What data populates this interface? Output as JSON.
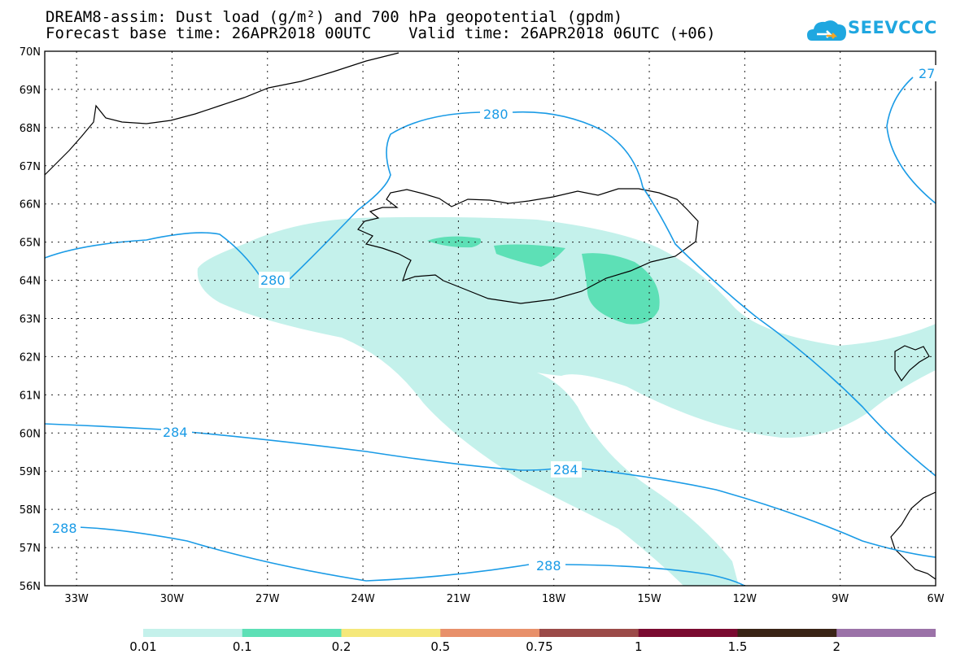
{
  "header": {
    "title_line1": "DREAM8-assim: Dust load (g/m²) and 700 hPa geopotential (gpdm)",
    "title_line2": "Forecast base time: 26APR2018 00UTC    Valid time: 26APR2018 06UTC (+06)"
  },
  "logo": {
    "text": "SEEVCCC",
    "icon": "cloud-icon",
    "color": "#1fa7e0"
  },
  "map": {
    "lon_range": [
      -34,
      -6
    ],
    "lat_range": [
      56,
      70
    ],
    "lon_ticks": [
      "33W",
      "30W",
      "27W",
      "24W",
      "21W",
      "18W",
      "15W",
      "12W",
      "9W",
      "6W"
    ],
    "lat_ticks": [
      "70N",
      "69N",
      "68N",
      "67N",
      "66N",
      "65N",
      "64N",
      "63N",
      "62N",
      "61N",
      "60N",
      "59N",
      "58N",
      "57N",
      "56N"
    ],
    "contour_labels": [
      "280",
      "280",
      "284",
      "284",
      "288",
      "288",
      "27"
    ],
    "contour_color": "#1a9be6"
  },
  "legend": {
    "labels": [
      "0.01",
      "0.1",
      "0.2",
      "0.5",
      "0.75",
      "1",
      "1.5",
      "2"
    ],
    "colors": [
      "#c4f1eb",
      "#5de0b6",
      "#f5e87a",
      "#e8906a",
      "#9b4a48",
      "#7a0a30",
      "#3a2416",
      "#9b72a8"
    ]
  }
}
